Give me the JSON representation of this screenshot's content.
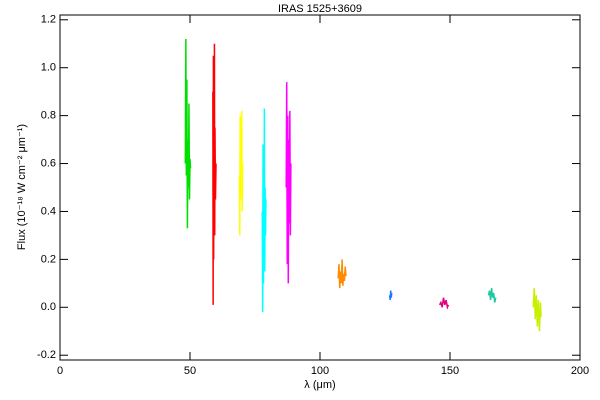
{
  "chart_data": {
    "type": "line",
    "title": "IRAS 1525+3609",
    "x_label": "λ (μm)",
    "y_label": "Flux (10⁻¹⁸ W cm⁻² μm⁻¹)",
    "xlim": [
      0,
      200
    ],
    "xticks": [
      0,
      50,
      100,
      150,
      200
    ],
    "ylim": [
      -0.22,
      1.22
    ],
    "yticks": [
      {
        "value": -0.2,
        "label": "-0.2"
      },
      {
        "value": 0,
        "label": "0.0"
      },
      {
        "value": 0.2,
        "label": "0.2"
      },
      {
        "value": 0.4,
        "label": "0.4"
      },
      {
        "value": 0.6,
        "label": "0.6"
      },
      {
        "value": 0.8,
        "label": "0.8"
      },
      {
        "value": 1,
        "label": "1.0"
      },
      {
        "value": 1.2,
        "label": "1.2"
      }
    ],
    "series": [
      {
        "color": "#00e000",
        "x": [
          48.2,
          48.4,
          48.6,
          48.8,
          49.0,
          49.2,
          49.4,
          49.6,
          49.8,
          50.0,
          50.2
        ],
        "values": [
          0.6,
          1.12,
          0.55,
          0.95,
          0.33,
          0.7,
          0.5,
          0.85,
          0.45,
          0.62,
          0.58
        ]
      },
      {
        "color": "#ff0000",
        "x": [
          58.8,
          58.9,
          59.0,
          59.1,
          59.2,
          59.3,
          59.4,
          59.5,
          59.6,
          59.8,
          60.0
        ],
        "values": [
          0.9,
          0.01,
          1.05,
          0.2,
          0.85,
          0.35,
          1.1,
          0.3,
          0.75,
          0.45,
          0.6
        ]
      },
      {
        "color": "#ffff00",
        "x": [
          69.0,
          69.15,
          69.3,
          69.45,
          69.6,
          69.75,
          69.9,
          70.05,
          70.2
        ],
        "values": [
          0.55,
          0.3,
          0.8,
          0.45,
          0.7,
          0.5,
          0.82,
          0.4,
          0.6
        ]
      },
      {
        "color": "#00ffff",
        "x": [
          77.8,
          77.95,
          78.1,
          78.25,
          78.4,
          78.5,
          78.6,
          78.75,
          78.9,
          79.05,
          79.2
        ],
        "values": [
          0.4,
          -0.02,
          0.68,
          0.1,
          0.55,
          0.2,
          0.83,
          0.15,
          0.5,
          0.3,
          0.45
        ]
      },
      {
        "color": "#ff00ff",
        "x": [
          87.0,
          87.2,
          87.4,
          87.6,
          87.8,
          88.0,
          88.2,
          88.4,
          88.6,
          88.8
        ],
        "values": [
          0.5,
          0.94,
          0.18,
          0.8,
          0.1,
          0.7,
          0.35,
          0.82,
          0.3,
          0.6
        ]
      },
      {
        "color": "#ff8c00",
        "x": [
          107.0,
          107.3,
          107.6,
          107.9,
          108.2,
          108.5,
          108.8,
          109.1,
          109.4,
          109.7,
          110.0
        ],
        "values": [
          0.12,
          0.18,
          0.08,
          0.15,
          0.1,
          0.2,
          0.09,
          0.14,
          0.11,
          0.17,
          0.13
        ]
      },
      {
        "color": "#1e78ff",
        "x": [
          126.8,
          127.0,
          127.2,
          127.4,
          127.6
        ],
        "values": [
          0.05,
          0.03,
          0.07,
          0.04,
          0.06
        ]
      },
      {
        "color": "#e0007f",
        "x": [
          146.0,
          146.5,
          147.0,
          147.5,
          148.0,
          148.5,
          149.0,
          149.4
        ],
        "values": [
          0.01,
          0.02,
          0.0,
          0.04,
          0.01,
          0.03,
          0.0,
          0.01
        ]
      },
      {
        "color": "#20c8a0",
        "x": [
          164.8,
          165.2,
          165.6,
          166.0,
          166.4,
          166.8,
          167.2,
          167.6
        ],
        "values": [
          0.05,
          0.07,
          0.03,
          0.08,
          0.04,
          0.06,
          0.02,
          0.04
        ]
      },
      {
        "color": "#c8f000",
        "x": [
          182.0,
          182.4,
          182.8,
          183.2,
          183.6,
          184.0,
          184.4,
          184.8,
          185.0
        ],
        "values": [
          0.0,
          0.08,
          -0.05,
          0.05,
          -0.08,
          0.03,
          -0.1,
          0.02,
          -0.04
        ]
      }
    ]
  }
}
